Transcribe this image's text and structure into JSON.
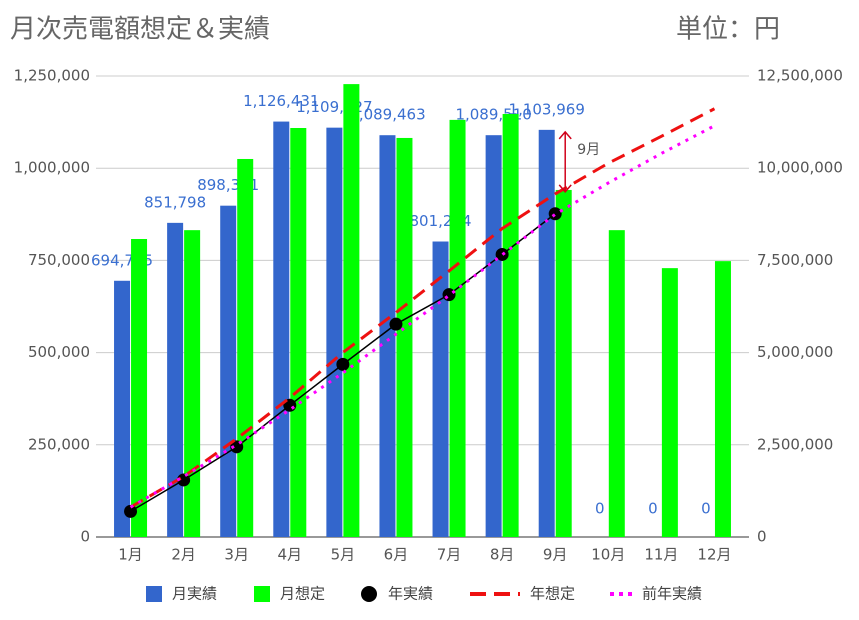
{
  "chart_data": {
    "type": "bar",
    "title": "月次売電額想定＆実績",
    "unit_label": "単位：円",
    "annotation": "9月",
    "categories": [
      "1月",
      "2月",
      "3月",
      "4月",
      "5月",
      "6月",
      "7月",
      "8月",
      "9月",
      "10月",
      "11月",
      "12月"
    ],
    "series": [
      {
        "name": "月実績",
        "type": "bar",
        "color": "#3366cc",
        "values": [
          694745,
          851798,
          898361,
          1126431,
          1109927,
          1089463,
          801214,
          1089510,
          1103969,
          0,
          0,
          0
        ],
        "value_labels": [
          "694,745",
          "851,798",
          "898,361",
          "1,126,431",
          "1,109,927",
          "1,089,463",
          "801,214",
          "1,089,510",
          "1,103,969",
          "0",
          "0",
          "0"
        ]
      },
      {
        "name": "月想定",
        "type": "bar",
        "color": "#00ff00",
        "values": [
          808000,
          832000,
          1025000,
          1109000,
          1228000,
          1082000,
          1131000,
          1147000,
          941000,
          832000,
          729000,
          748000
        ]
      },
      {
        "name": "年実績",
        "type": "line",
        "axis": "y2",
        "color": "#000000",
        "marker": true,
        "dash": "solid",
        "values": [
          694745,
          1546543,
          2444904,
          3571335,
          4681262,
          5770725,
          6571939,
          7661449,
          8765418,
          null,
          null,
          null
        ]
      },
      {
        "name": "年想定",
        "type": "line",
        "axis": "y2",
        "color": "#ee1111",
        "marker": false,
        "dash": "dashed",
        "values": [
          808000,
          1640000,
          2665000,
          3774000,
          5002000,
          6084000,
          7215000,
          8362000,
          9303000,
          10135000,
          10864000,
          11612000
        ]
      },
      {
        "name": "前年実績",
        "type": "line",
        "axis": "y2",
        "color": "#ff00ff",
        "marker": false,
        "dash": "dotted",
        "values": [
          810000,
          1640000,
          2500000,
          3450000,
          4450000,
          5500000,
          6550000,
          7650000,
          8750000,
          9600000,
          10400000,
          11150000
        ]
      }
    ],
    "ylim": [
      0,
      1250000
    ],
    "yticks": [
      0,
      {
        "value": 250000,
        "label": "250,000"
      },
      {
        "value": 500000,
        "label": "500,000"
      },
      {
        "value": 750000,
        "label": "750,000"
      },
      {
        "value": 1000000,
        "label": "1,000,000"
      },
      {
        "value": 1250000,
        "label": "1,250,000"
      }
    ],
    "y2lim": [
      0,
      12500000
    ],
    "y2ticks": [
      0,
      {
        "value": 2500000,
        "label": "2,500,000"
      },
      {
        "value": 5000000,
        "label": "5,000,000"
      },
      {
        "value": 7500000,
        "label": "7,500,000"
      },
      {
        "value": 10000000,
        "label": "10,000,000"
      },
      {
        "value": 12500000,
        "label": "12,500,000"
      }
    ],
    "grid": true,
    "legend": "bottom"
  }
}
